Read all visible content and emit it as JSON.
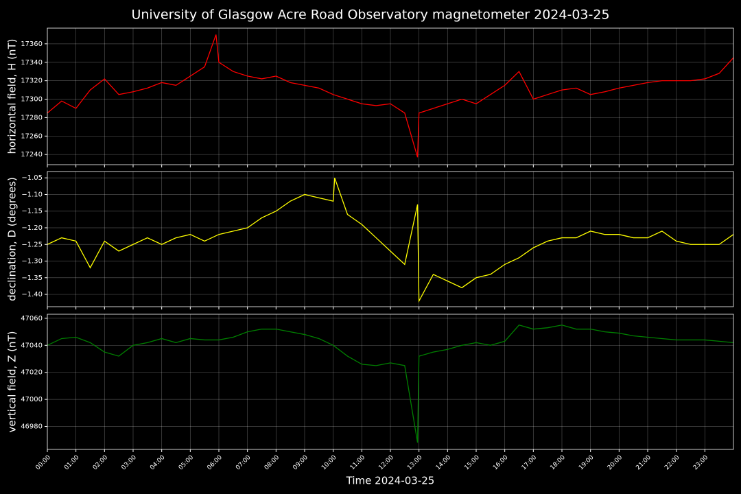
{
  "title": "University of Glasgow Acre Road Observatory magnetometer 2024-03-25",
  "chart_data": [
    {
      "type": "line",
      "ylabel": "horizontal field, H (nT)",
      "color": "#ff0000",
      "grid": true,
      "xlim": [
        0,
        24
      ],
      "ylim": [
        17229,
        17377
      ],
      "yticks": [
        17240,
        17260,
        17280,
        17300,
        17320,
        17340,
        17360
      ],
      "x": [
        0,
        0.5,
        1,
        1.5,
        2,
        2.5,
        3,
        3.5,
        4,
        4.5,
        5,
        5.5,
        5.9,
        6,
        6.5,
        7,
        7.5,
        8,
        8.5,
        9,
        9.5,
        10,
        10.5,
        11,
        11.5,
        12,
        12.5,
        12.95,
        13,
        13.5,
        14,
        14.5,
        15,
        15.5,
        16,
        16.5,
        17,
        17.5,
        18,
        18.5,
        19,
        19.5,
        20,
        20.5,
        21,
        21.5,
        22,
        22.5,
        23,
        23.5,
        24
      ],
      "values": [
        17285,
        17298,
        17290,
        17310,
        17322,
        17305,
        17308,
        17312,
        17318,
        17315,
        17325,
        17335,
        17370,
        17340,
        17330,
        17325,
        17322,
        17325,
        17318,
        17315,
        17312,
        17305,
        17300,
        17295,
        17293,
        17295,
        17285,
        17237,
        17285,
        17290,
        17295,
        17300,
        17295,
        17305,
        17315,
        17330,
        17300,
        17305,
        17310,
        17312,
        17305,
        17308,
        17312,
        17315,
        17318,
        17320,
        17320,
        17320,
        17322,
        17328,
        17345
      ]
    },
    {
      "type": "line",
      "ylabel": "declination, D (degrees)",
      "color": "#ffff00",
      "grid": true,
      "xlim": [
        0,
        24
      ],
      "ylim": [
        -1.437,
        -1.031
      ],
      "yticks": [
        {
          "value": -1.4,
          "label": "−1.40"
        },
        {
          "value": -1.35,
          "label": "−1.35"
        },
        {
          "value": -1.3,
          "label": "−1.30"
        },
        {
          "value": -1.25,
          "label": "−1.25"
        },
        {
          "value": -1.2,
          "label": "−1.20"
        },
        {
          "value": -1.15,
          "label": "−1.15"
        },
        {
          "value": -1.1,
          "label": "−1.10"
        },
        {
          "value": -1.05,
          "label": "−1.05"
        }
      ],
      "x": [
        0,
        0.5,
        1,
        1.5,
        2,
        2.5,
        3,
        3.5,
        4,
        4.5,
        5,
        5.5,
        6,
        6.5,
        7,
        7.5,
        8,
        8.5,
        9,
        9.5,
        10,
        10.05,
        10.5,
        11,
        11.5,
        12,
        12.5,
        12.95,
        13,
        13.5,
        14,
        14.5,
        15,
        15.5,
        16,
        16.5,
        17,
        17.5,
        18,
        18.5,
        19,
        19.5,
        20,
        20.5,
        21,
        21.5,
        22,
        22.5,
        23,
        23.5,
        24
      ],
      "values": [
        -1.25,
        -1.23,
        -1.24,
        -1.32,
        -1.24,
        -1.27,
        -1.25,
        -1.23,
        -1.25,
        -1.23,
        -1.22,
        -1.24,
        -1.22,
        -1.21,
        -1.2,
        -1.17,
        -1.15,
        -1.12,
        -1.1,
        -1.11,
        -1.12,
        -1.05,
        -1.16,
        -1.19,
        -1.23,
        -1.27,
        -1.31,
        -1.13,
        -1.42,
        -1.34,
        -1.36,
        -1.38,
        -1.35,
        -1.34,
        -1.31,
        -1.29,
        -1.26,
        -1.24,
        -1.23,
        -1.23,
        -1.21,
        -1.22,
        -1.22,
        -1.23,
        -1.23,
        -1.21,
        -1.24,
        -1.25,
        -1.25,
        -1.25,
        -1.22
      ]
    },
    {
      "type": "line",
      "ylabel": "vertical field, Z (nT)",
      "xlabel": "Time 2024-03-25",
      "color": "#008000",
      "grid": true,
      "xlim": [
        0,
        24
      ],
      "ylim": [
        46963,
        47063
      ],
      "yticks": [
        46980,
        47000,
        47020,
        47040,
        47060
      ],
      "xticks": [
        {
          "value": 0,
          "label": "00:00"
        },
        {
          "value": 1,
          "label": "01:00"
        },
        {
          "value": 2,
          "label": "02:00"
        },
        {
          "value": 3,
          "label": "03:00"
        },
        {
          "value": 4,
          "label": "04:00"
        },
        {
          "value": 5,
          "label": "05:00"
        },
        {
          "value": 6,
          "label": "06:00"
        },
        {
          "value": 7,
          "label": "07:00"
        },
        {
          "value": 8,
          "label": "08:00"
        },
        {
          "value": 9,
          "label": "09:00"
        },
        {
          "value": 10,
          "label": "10:00"
        },
        {
          "value": 11,
          "label": "11:00"
        },
        {
          "value": 12,
          "label": "12:00"
        },
        {
          "value": 13,
          "label": "13:00"
        },
        {
          "value": 14,
          "label": "14:00"
        },
        {
          "value": 15,
          "label": "15:00"
        },
        {
          "value": 16,
          "label": "16:00"
        },
        {
          "value": 17,
          "label": "17:00"
        },
        {
          "value": 18,
          "label": "18:00"
        },
        {
          "value": 19,
          "label": "19:00"
        },
        {
          "value": 20,
          "label": "20:00"
        },
        {
          "value": 21,
          "label": "21:00"
        },
        {
          "value": 22,
          "label": "22:00"
        },
        {
          "value": 23,
          "label": "23:00"
        }
      ],
      "x": [
        0,
        0.5,
        1,
        1.5,
        2,
        2.5,
        3,
        3.5,
        4,
        4.5,
        5,
        5.5,
        6,
        6.5,
        7,
        7.5,
        8,
        8.5,
        9,
        9.5,
        10,
        10.5,
        11,
        11.5,
        12,
        12.5,
        12.95,
        13,
        13.5,
        14,
        14.5,
        15,
        15.5,
        16,
        16.5,
        17,
        17.5,
        18,
        18.5,
        19,
        19.5,
        20,
        20.5,
        21,
        21.5,
        22,
        22.5,
        23,
        23.5,
        24
      ],
      "values": [
        47040,
        47045,
        47046,
        47042,
        47035,
        47032,
        47040,
        47042,
        47045,
        47042,
        47045,
        47044,
        47044,
        47046,
        47050,
        47052,
        47052,
        47050,
        47048,
        47045,
        47040,
        47032,
        47026,
        47025,
        47027,
        47025,
        46968,
        47032,
        47035,
        47037,
        47040,
        47042,
        47040,
        47043,
        47055,
        47052,
        47053,
        47055,
        47052,
        47052,
        47050,
        47049,
        47047,
        47046,
        47045,
        47044,
        47044,
        47044,
        47043,
        47042
      ]
    }
  ]
}
